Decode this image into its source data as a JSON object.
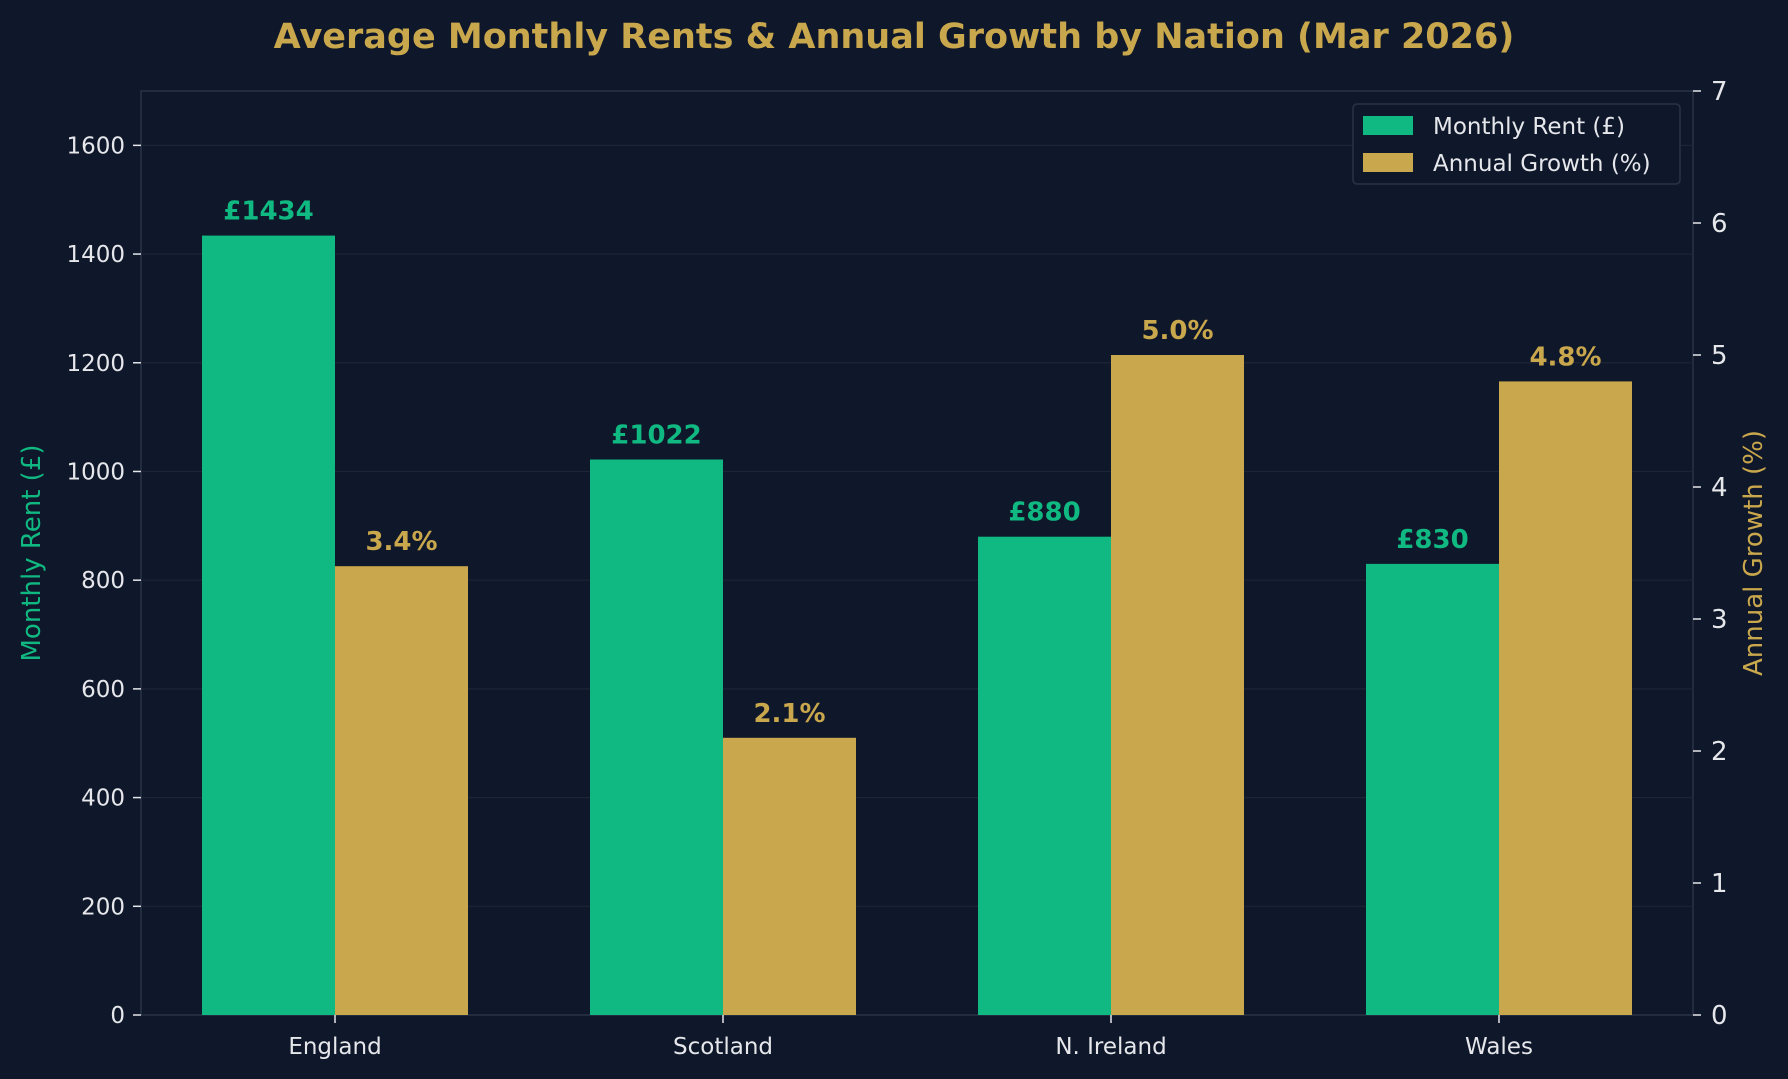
{
  "colors": {
    "background": "#0f172a",
    "plot_background": "#0f172a",
    "rent": "#10b981",
    "growth": "#c9a74c",
    "text": "#e5e7eb",
    "grid": "#1c2536",
    "axis": "#2a3444"
  },
  "chart_data": {
    "type": "bar",
    "title": "Average Monthly Rents & Annual Growth by Nation (Mar 2026)",
    "categories": [
      "England",
      "Scotland",
      "N. Ireland",
      "Wales"
    ],
    "ylabel_left": "Monthly Rent (£)",
    "ylabel_right": "Annual Growth (%)",
    "ylim_left": [
      0,
      1700
    ],
    "ylim_right": [
      0,
      7
    ],
    "yticks_left": [
      "0",
      "200",
      "400",
      "600",
      "800",
      "1000",
      "1200",
      "1400",
      "1600"
    ],
    "yticks_right": [
      "0",
      "1",
      "2",
      "3",
      "4",
      "5",
      "6",
      "7"
    ],
    "grid": true,
    "legend_position": "top-right",
    "series": [
      {
        "name": "Monthly Rent (£)",
        "axis": "left",
        "values": [
          1434,
          1022,
          880,
          830
        ],
        "labels": [
          "£1434",
          "£1022",
          "£880",
          "£830"
        ]
      },
      {
        "name": "Annual Growth (%)",
        "axis": "right",
        "values": [
          3.4,
          2.1,
          5.0,
          4.8
        ],
        "labels": [
          "3.4%",
          "2.1%",
          "5.0%",
          "4.8%"
        ]
      }
    ]
  }
}
